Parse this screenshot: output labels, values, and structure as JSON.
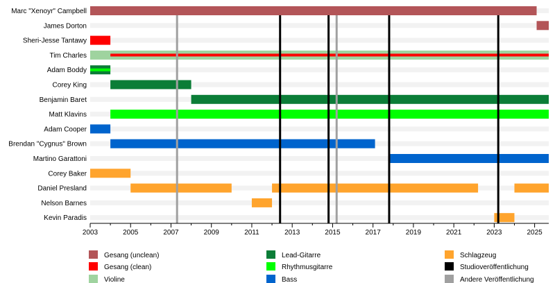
{
  "chart_data": {
    "type": "timeline",
    "xlim": [
      2003,
      2025.7
    ],
    "x_ticks": [
      "2003",
      "2005",
      "2007",
      "2009",
      "2011",
      "2013",
      "2015",
      "2017",
      "2019",
      "2021",
      "2023",
      "2025"
    ],
    "members": [
      {
        "name": "Marc \"Xenoyr\" Campbell",
        "bars": [
          {
            "role": "Gesang (unclean)",
            "start": 2003,
            "end": 2025.1
          }
        ]
      },
      {
        "name": "James Dorton",
        "bars": [
          {
            "role": "Gesang (unclean)",
            "start": 2025.1,
            "end": 2025.7
          }
        ]
      },
      {
        "name": "Sheri-Jesse Tantawy",
        "bars": [
          {
            "role": "Gesang (clean)",
            "start": 2003,
            "end": 2004
          }
        ]
      },
      {
        "name": "Tim Charles",
        "bars": [
          {
            "role": "Violine",
            "start": 2003,
            "end": 2004
          },
          {
            "role": "Violine",
            "start": 2004,
            "end": 2025.7,
            "stripe": "Gesang (clean)"
          }
        ]
      },
      {
        "name": "Adam Boddy",
        "bars": [
          {
            "role": "Lead-Gitarre",
            "start": 2003,
            "end": 2004,
            "stripe": "Rhythmusgitarre"
          }
        ]
      },
      {
        "name": "Corey King",
        "bars": [
          {
            "role": "Lead-Gitarre",
            "start": 2004,
            "end": 2008
          }
        ]
      },
      {
        "name": "Benjamin Baret",
        "bars": [
          {
            "role": "Lead-Gitarre",
            "start": 2008,
            "end": 2025.7
          }
        ]
      },
      {
        "name": "Matt Klavins",
        "bars": [
          {
            "role": "Rhythmusgitarre",
            "start": 2004,
            "end": 2025.7
          }
        ]
      },
      {
        "name": "Adam Cooper",
        "bars": [
          {
            "role": "Bass",
            "start": 2003,
            "end": 2004
          }
        ]
      },
      {
        "name": "Brendan \"Cygnus\" Brown",
        "bars": [
          {
            "role": "Bass",
            "start": 2004,
            "end": 2017.1
          }
        ]
      },
      {
        "name": "Martino Garattoni",
        "bars": [
          {
            "role": "Bass",
            "start": 2017.8,
            "end": 2025.7
          }
        ]
      },
      {
        "name": "Corey Baker",
        "bars": [
          {
            "role": "Schlagzeug",
            "start": 2003,
            "end": 2005
          }
        ]
      },
      {
        "name": "Daniel Presland",
        "bars": [
          {
            "role": "Schlagzeug",
            "start": 2005,
            "end": 2010
          },
          {
            "role": "Schlagzeug",
            "start": 2012,
            "end": 2022.2
          },
          {
            "role": "Schlagzeug",
            "start": 2024,
            "end": 2025.7
          }
        ]
      },
      {
        "name": "Nelson Barnes",
        "bars": [
          {
            "role": "Schlagzeug",
            "start": 2011,
            "end": 2012
          }
        ]
      },
      {
        "name": "Kevin Paradis",
        "bars": [
          {
            "role": "Schlagzeug",
            "start": 2023,
            "end": 2024
          }
        ]
      }
    ],
    "studio_releases": [
      2012.4,
      2014.8,
      2017.8,
      2023.2
    ],
    "other_releases": [
      2007.3,
      2015.2
    ],
    "legend": [
      {
        "label": "Gesang (unclean)",
        "color": "#b35558"
      },
      {
        "label": "Lead-Gitarre",
        "color": "#0b7d37"
      },
      {
        "label": "Schlagzeug",
        "color": "#ffa42d"
      },
      {
        "label": "Gesang (clean)",
        "color": "#ff0000"
      },
      {
        "label": "Rhythmusgitarre",
        "color": "#00ff00"
      },
      {
        "label": "Studioveröffentlichung",
        "color": "#000000"
      },
      {
        "label": "Violine",
        "color": "#9fd39f"
      },
      {
        "label": "Bass",
        "color": "#0064cd"
      },
      {
        "label": "Andere Veröffentlichung",
        "color": "#a0a0a0"
      }
    ],
    "role_colors": {
      "Gesang (unclean)": "#b35558",
      "Gesang (clean)": "#ff0000",
      "Violine": "#9fd39f",
      "Lead-Gitarre": "#0b7d37",
      "Rhythmusgitarre": "#00ff00",
      "Bass": "#0064cd",
      "Schlagzeug": "#ffa42d"
    },
    "studio_color": "#000000",
    "other_color": "#a0a0a0",
    "row_bg_color": "#f2f2f2"
  }
}
